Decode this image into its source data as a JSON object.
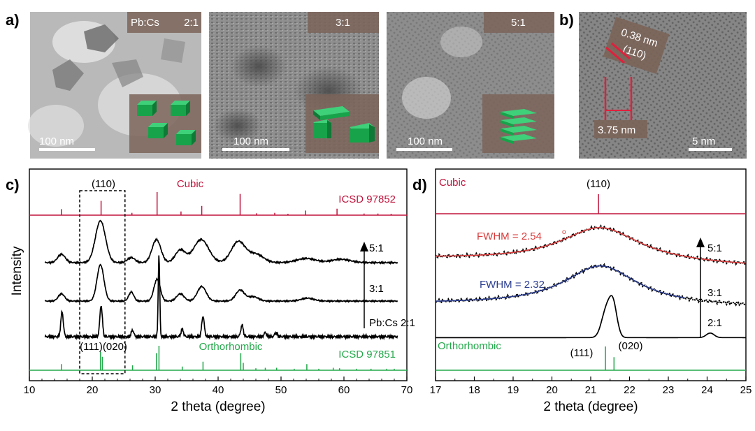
{
  "panels": {
    "a": {
      "label": "a)",
      "images": [
        {
          "ratio_prefix": "Pb:Cs",
          "ratio": "2:1",
          "scalebar": "100 nm"
        },
        {
          "ratio_prefix": "",
          "ratio": "3:1",
          "scalebar": "100 nm"
        },
        {
          "ratio_prefix": "",
          "ratio": "5:1",
          "scalebar": "100 nm"
        }
      ]
    },
    "b": {
      "label": "b)",
      "d_spacing": "0.38 nm",
      "plane": "(110)",
      "width": "3.75 nm",
      "scalebar": "5 nm"
    },
    "c": {
      "label": "c)"
    },
    "d": {
      "label": "d)"
    }
  },
  "colors": {
    "cubic": "#c0143c",
    "orthorhombic": "#22a84a",
    "fit_red": "#d93b3b",
    "fit_blue": "#2c3e8f",
    "data": "#000000"
  },
  "chart_data": [
    {
      "type": "line",
      "panel": "c",
      "xlabel": "2 theta (degree)",
      "ylabel": "Intensity",
      "xlim": [
        10,
        70
      ],
      "xticks": [
        10,
        20,
        30,
        40,
        50,
        60,
        70
      ],
      "series": [
        {
          "name": "5:1",
          "peaks": [
            [
              15.1,
              0.2,
              0.6
            ],
            [
              21.3,
              1.0,
              0.8
            ],
            [
              26.2,
              0.12,
              0.6
            ],
            [
              30.2,
              0.55,
              0.7
            ],
            [
              34.0,
              0.3,
              0.8
            ],
            [
              37.3,
              0.55,
              1.2
            ],
            [
              43.2,
              0.5,
              1.1
            ],
            [
              46.0,
              0.2,
              1.2
            ],
            [
              54.0,
              0.1,
              1.5
            ],
            [
              59.5,
              0.08,
              1.5
            ]
          ]
        },
        {
          "name": "3:1",
          "peaks": [
            [
              15.1,
              0.2,
              0.5
            ],
            [
              21.3,
              1.0,
              0.55
            ],
            [
              26.2,
              0.25,
              0.4
            ],
            [
              30.3,
              0.6,
              0.5
            ],
            [
              34.0,
              0.2,
              0.6
            ],
            [
              37.4,
              0.4,
              0.7
            ],
            [
              43.5,
              0.3,
              0.7
            ],
            [
              45.6,
              0.12,
              0.8
            ],
            [
              54.2,
              0.08,
              1.0
            ]
          ]
        },
        {
          "name": "2:1",
          "peaks": [
            [
              15.2,
              0.3,
              0.2
            ],
            [
              21.4,
              0.38,
              0.2
            ],
            [
              26.4,
              0.08,
              0.2
            ],
            [
              30.6,
              1.0,
              0.12
            ],
            [
              34.3,
              0.09,
              0.2
            ],
            [
              37.6,
              0.25,
              0.2
            ],
            [
              43.8,
              0.14,
              0.2
            ],
            [
              47.5,
              0.05,
              0.2
            ],
            [
              49.2,
              0.05,
              0.2
            ]
          ]
        }
      ],
      "series_labels": [
        "5:1",
        "3:1",
        "Pb:Cs  2:1"
      ],
      "reference_cubic": {
        "name": "Cubic",
        "source": "ICSD 97852",
        "sticks": [
          [
            15.1,
            0.26
          ],
          [
            21.4,
            0.62
          ],
          [
            26.3,
            0.1
          ],
          [
            30.3,
            1.0
          ],
          [
            34.1,
            0.16
          ],
          [
            37.4,
            0.4
          ],
          [
            43.5,
            0.92
          ],
          [
            46.1,
            0.08
          ],
          [
            49.0,
            0.1
          ],
          [
            51.1,
            0.06
          ],
          [
            53.9,
            0.2
          ],
          [
            58.9,
            0.28
          ],
          [
            63.2,
            0.07
          ],
          [
            65.4,
            0.07
          ],
          [
            67.5,
            0.06
          ]
        ]
      },
      "reference_orthorhombic": {
        "name": "Orthorhombic",
        "source": "ICSD 97851",
        "sticks": [
          [
            15.1,
            0.25
          ],
          [
            21.3,
            0.75
          ],
          [
            21.6,
            0.55
          ],
          [
            26.4,
            0.2
          ],
          [
            30.2,
            0.7
          ],
          [
            30.6,
            1.0
          ],
          [
            34.3,
            0.15
          ],
          [
            37.6,
            0.35
          ],
          [
            43.6,
            0.7
          ],
          [
            44.0,
            0.3
          ],
          [
            46.0,
            0.08
          ],
          [
            47.5,
            0.1
          ],
          [
            49.3,
            0.1
          ],
          [
            52.1,
            0.06
          ],
          [
            54.1,
            0.25
          ],
          [
            56.0,
            0.06
          ],
          [
            58.3,
            0.1
          ],
          [
            59.3,
            0.08
          ],
          [
            62.0,
            0.06
          ],
          [
            64.3,
            0.06
          ],
          [
            66.8,
            0.06
          ],
          [
            68.0,
            0.06
          ]
        ]
      },
      "annotations": {
        "box_top": "(110)",
        "box_bottom": "(111)(020)"
      },
      "highlight_box": [
        18,
        25.2
      ]
    },
    {
      "type": "line",
      "panel": "d",
      "xlabel": "2 theta (degree)",
      "ylabel": "",
      "xlim": [
        17,
        25
      ],
      "xticks": [
        17,
        18,
        19,
        20,
        21,
        22,
        23,
        24,
        25
      ],
      "series": [
        {
          "name": "5:1",
          "center": 21.25,
          "fwhm": 2.54,
          "height": 1.0,
          "baseline": [
            0.18,
            0.0
          ]
        },
        {
          "name": "3:1",
          "center": 21.25,
          "fwhm": 2.32,
          "height": 1.0,
          "baseline": [
            0.08,
            0.0
          ]
        },
        {
          "name": "2:1",
          "peaks": [
            [
              21.4,
              0.7,
              0.12
            ],
            [
              21.58,
              0.8,
              0.1
            ],
            [
              24.08,
              0.12,
              0.1
            ]
          ]
        }
      ],
      "fits": [
        {
          "name": "FWHM = 2.54",
          "unit": "o",
          "series": "5:1"
        },
        {
          "name": "FWHM = 2.32",
          "unit": "o",
          "series": "3:1"
        }
      ],
      "reference_cubic": {
        "name": "Cubic",
        "sticks": [
          [
            21.2,
            1.0
          ]
        ],
        "label": "(110)"
      },
      "reference_orthorhombic": {
        "name": "Orthorhombic",
        "sticks": [
          [
            21.38,
            1.0
          ],
          [
            21.6,
            0.55
          ]
        ],
        "labels": [
          "(111)",
          "(020)"
        ]
      }
    }
  ]
}
